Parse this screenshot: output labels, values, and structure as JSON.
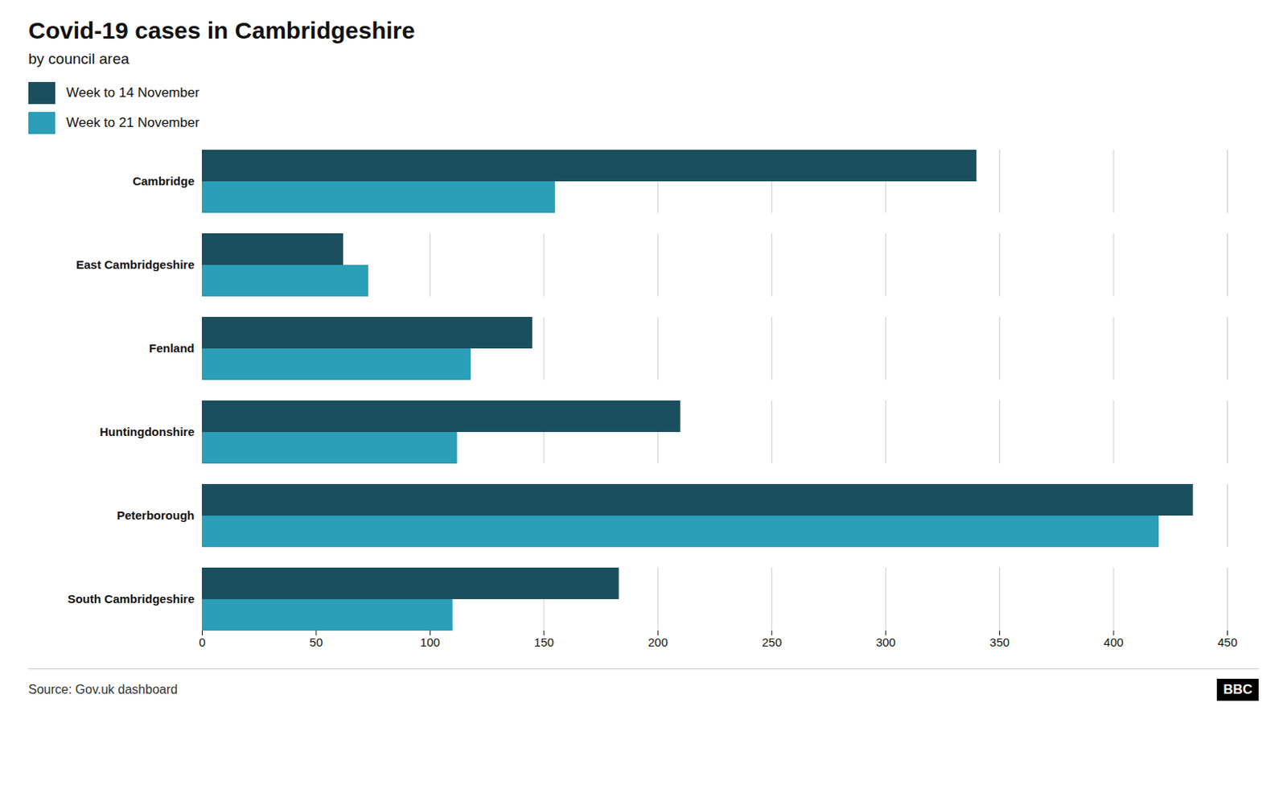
{
  "chart_data": {
    "type": "bar",
    "orientation": "horizontal",
    "title": "Covid-19 cases in Cambridgeshire",
    "subtitle": "by council area",
    "annotations": [
      "Source: Gov.uk dashboard",
      "BBC"
    ],
    "categories": [
      "Cambridge",
      "East Cambridgeshire",
      "Fenland",
      "Huntingdonshire",
      "Peterborough",
      "South Cambridgeshire"
    ],
    "series": [
      {
        "name": "Week to 14 November",
        "color": "#1a4f5e",
        "values": [
          340,
          62,
          145,
          210,
          435,
          183
        ]
      },
      {
        "name": "Week to 21 November",
        "color": "#2b9eb8",
        "values": [
          155,
          73,
          118,
          112,
          420,
          110
        ]
      }
    ],
    "xlim": [
      0,
      450
    ],
    "xticks": [
      0,
      50,
      100,
      150,
      200,
      250,
      300,
      350,
      400,
      450
    ],
    "grid": true,
    "legend": "upper left"
  }
}
